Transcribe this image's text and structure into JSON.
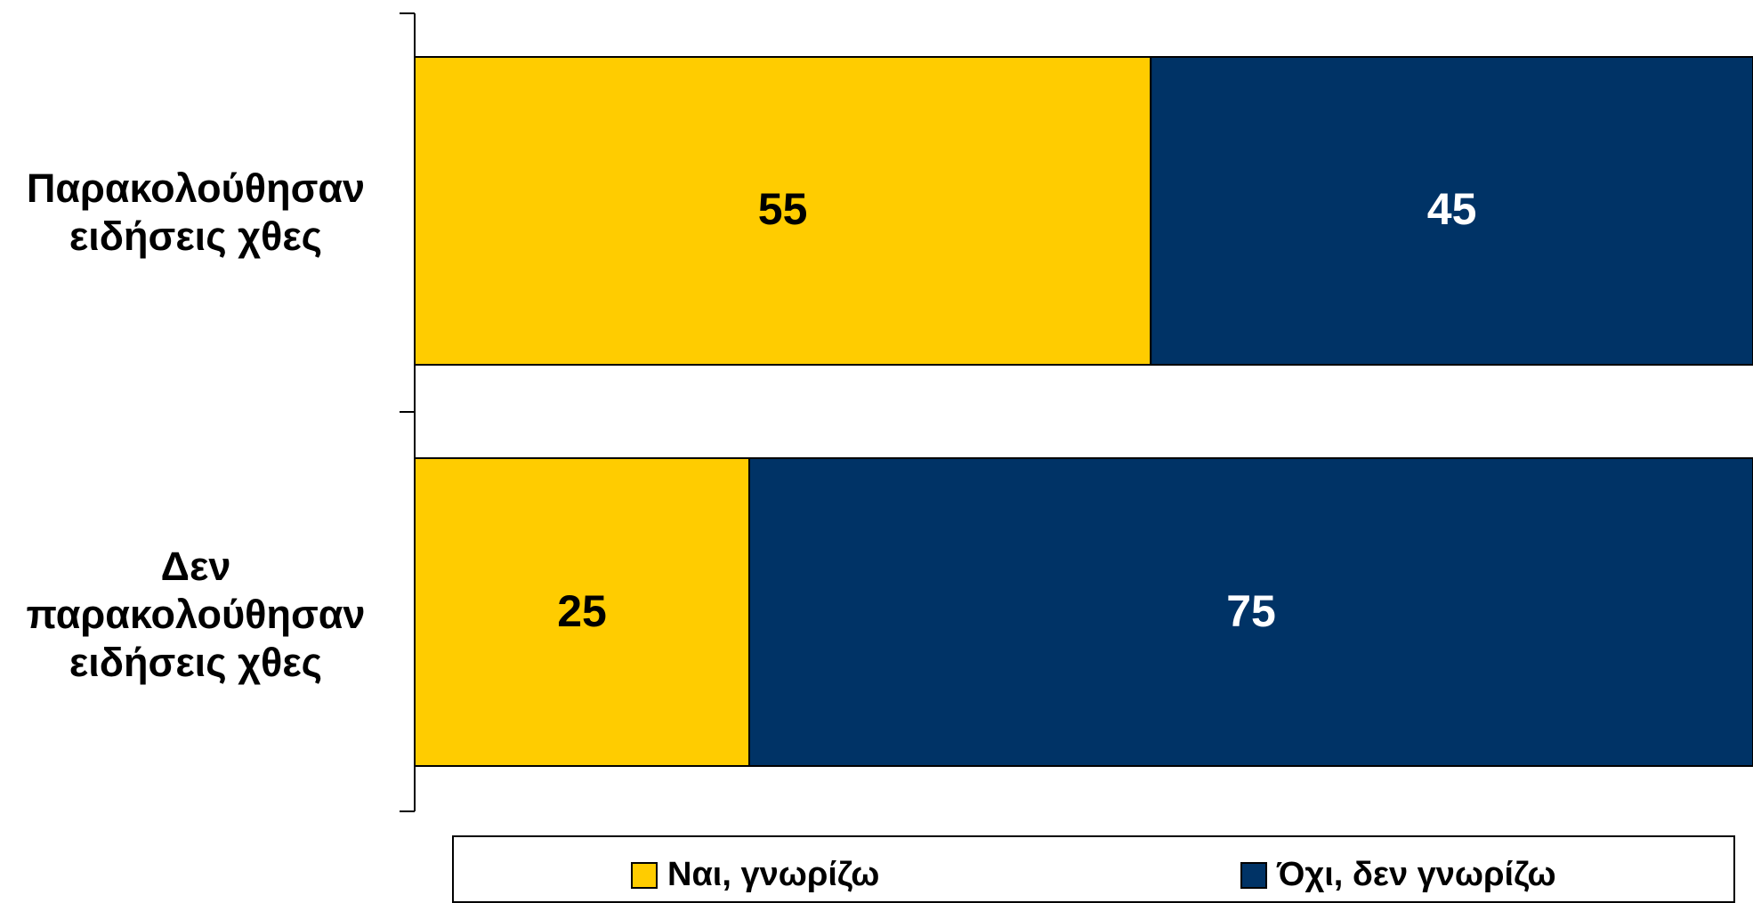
{
  "chart_data": {
    "type": "stacked_bar_horizontal",
    "categories": [
      "Παρακολούθησαν ειδήσεις χθες",
      "Δεν παρακολούθησαν ειδήσεις χθες"
    ],
    "series": [
      {
        "name": "Ναι, γνωρίζω",
        "color": "#ffcc00",
        "label_color": "#000000",
        "values": [
          55,
          25
        ]
      },
      {
        "name": "Όχι, δεν γνωρίζω",
        "color": "#003366",
        "label_color": "#ffffff",
        "values": [
          45,
          75
        ]
      }
    ],
    "xlim": [
      0,
      100
    ],
    "legend": "bottom"
  }
}
